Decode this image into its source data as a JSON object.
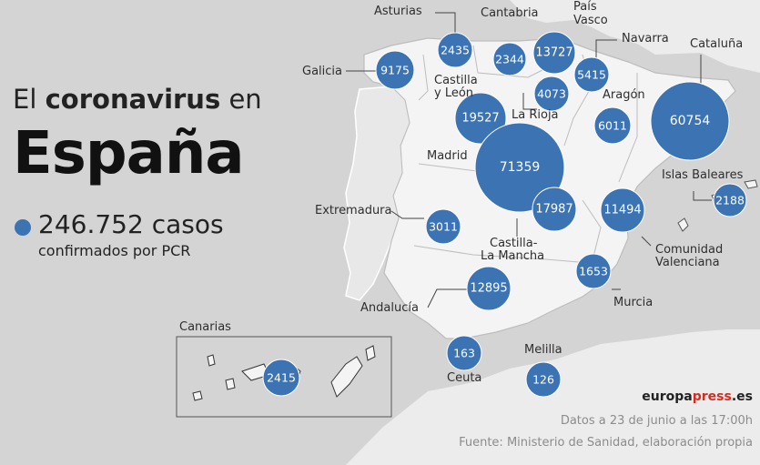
{
  "title": {
    "prefix": "El",
    "bold": "coronavirus",
    "suffix": "en"
  },
  "country": "España",
  "total": {
    "value": "246.752 casos",
    "subtitle": "confirmados por PCR"
  },
  "brand": {
    "main": "europa",
    "accent": "press",
    "tld": ".es"
  },
  "footer": {
    "date": "Datos a 23 de junio a las 17:00h",
    "source": "Fuente: Ministerio de Sanidad, elaboración propia"
  },
  "colors": {
    "bubble": "#3b73b3",
    "background": "#d4d4d4",
    "land": "#f4f4f4",
    "accent": "#d62b1f"
  },
  "inset_label": "Canarias",
  "labels": {
    "asturias": "Asturias",
    "cantabria": "Cantabria",
    "pais_vasco_1": "País",
    "pais_vasco_2": "Vasco",
    "navarra": "Navarra",
    "cataluna": "Cataluña",
    "galicia": "Galicia",
    "castilla_leon_1": "Castilla",
    "castilla_leon_2": "y León",
    "la_rioja": "La Rioja",
    "aragon": "Aragón",
    "madrid": "Madrid",
    "islas_baleares": "Islas Baleares",
    "extremadura": "Extremadura",
    "castilla_mancha_1": "Castilla-",
    "castilla_mancha_2": "La Mancha",
    "comunidad_valenciana_1": "Comunidad",
    "comunidad_valenciana_2": "Valenciana",
    "murcia": "Murcia",
    "andalucia": "Andalucía",
    "ceuta": "Ceuta",
    "melilla": "Melilla"
  },
  "regions": [
    {
      "key": "asturias",
      "value": 2435
    },
    {
      "key": "cantabria",
      "value": 2344
    },
    {
      "key": "pais_vasco",
      "value": 13727
    },
    {
      "key": "navarra",
      "value": 5415
    },
    {
      "key": "cataluna",
      "value": 60754
    },
    {
      "key": "galicia",
      "value": 9175
    },
    {
      "key": "la_rioja",
      "value": 4073
    },
    {
      "key": "castilla_leon",
      "value": 19527
    },
    {
      "key": "aragon",
      "value": 6011
    },
    {
      "key": "madrid",
      "value": 71359
    },
    {
      "key": "castilla_mancha",
      "value": 17987
    },
    {
      "key": "comunidad_valenciana",
      "value": 11494
    },
    {
      "key": "islas_baleares",
      "value": 2188
    },
    {
      "key": "extremadura",
      "value": 3011
    },
    {
      "key": "andalucia",
      "value": 12895
    },
    {
      "key": "murcia",
      "value": 1653
    },
    {
      "key": "ceuta",
      "value": 163
    },
    {
      "key": "melilla",
      "value": 126
    },
    {
      "key": "canarias",
      "value": 2415
    }
  ]
}
